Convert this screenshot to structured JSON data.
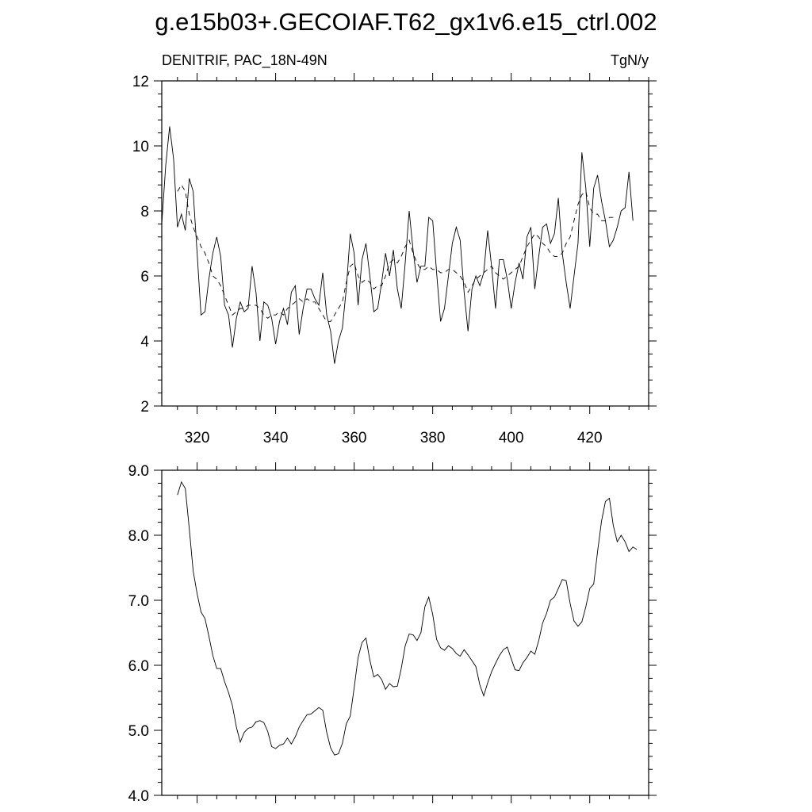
{
  "title": "g.e15b03+.GECOIAF.T62_gx1v6.e15_ctrl.002",
  "chart_data": [
    {
      "type": "line",
      "left_label": "DENITRIF, PAC_18N-49N",
      "right_label": "TgN/y",
      "xlim": [
        311,
        435
      ],
      "ylim": [
        2,
        12
      ],
      "x_ticks": [
        320,
        340,
        360,
        380,
        400,
        420
      ],
      "y_ticks": [
        2,
        4,
        6,
        8,
        10,
        12
      ],
      "y_tick_labels": [
        "2",
        "4",
        "6",
        "8",
        "10",
        "12"
      ],
      "x_start": 311,
      "series": [
        {
          "style": "solid",
          "values": [
            7.6,
            9.4,
            10.6,
            9.6,
            7.5,
            7.9,
            7.4,
            9.0,
            8.6,
            6.7,
            4.8,
            4.9,
            5.9,
            6.7,
            7.2,
            6.6,
            5.1,
            4.8,
            3.8,
            4.7,
            5.2,
            4.9,
            5.0,
            6.3,
            5.5,
            4.0,
            5.2,
            5.1,
            4.7,
            3.9,
            4.6,
            5.0,
            4.5,
            5.5,
            5.7,
            4.2,
            5.0,
            5.6,
            5.6,
            5.3,
            5.1,
            6.1,
            4.8,
            4.3,
            3.3,
            4.0,
            4.4,
            5.6,
            7.3,
            6.7,
            5.1,
            6.5,
            7.0,
            6.0,
            4.9,
            5.0,
            5.8,
            6.7,
            6.0,
            6.8,
            5.6,
            5.0,
            6.4,
            8.0,
            6.8,
            5.8,
            6.3,
            6.3,
            7.8,
            7.7,
            6.1,
            4.6,
            5.0,
            6.0,
            7.0,
            7.5,
            7.1,
            5.5,
            4.3,
            5.6,
            6.0,
            5.7,
            6.1,
            7.4,
            6.3,
            5.0,
            6.5,
            6.5,
            5.9,
            5.0,
            5.8,
            6.4,
            5.9,
            7.2,
            7.5,
            5.6,
            6.6,
            7.5,
            7.6,
            7.0,
            7.3,
            8.4,
            6.7,
            5.8,
            5.0,
            6.0,
            7.0,
            9.8,
            8.7,
            6.9,
            8.7,
            9.1,
            8.3,
            7.7,
            6.9,
            7.1,
            7.5,
            8.0,
            8.1,
            9.2,
            7.7
          ]
        },
        {
          "style": "dashed",
          "values": [
            null,
            null,
            null,
            null,
            8.6,
            8.8,
            8.6,
            7.9,
            7.5,
            7.2,
            6.9,
            6.7,
            6.4,
            6.0,
            5.9,
            5.7,
            5.4,
            5.1,
            4.8,
            4.9,
            5.0,
            5.0,
            5.1,
            5.1,
            5.1,
            5.0,
            4.8,
            4.7,
            4.8,
            4.8,
            4.9,
            4.8,
            5.0,
            5.1,
            5.2,
            5.3,
            5.2,
            5.3,
            5.2,
            5.2,
            5.0,
            4.8,
            4.6,
            4.6,
            4.8,
            5.0,
            5.2,
            5.8,
            6.3,
            6.4,
            6.0,
            5.8,
            5.9,
            5.8,
            5.6,
            5.7,
            5.7,
            6.0,
            6.4,
            6.5,
            6.4,
            6.6,
            6.9,
            7.1,
            6.7,
            6.4,
            6.2,
            6.2,
            6.3,
            6.2,
            6.2,
            6.1,
            6.1,
            6.2,
            6.2,
            6.1,
            6.0,
            5.8,
            5.5,
            5.7,
            5.9,
            6.0,
            6.1,
            6.2,
            6.3,
            6.1,
            6.0,
            5.9,
            6.0,
            6.1,
            6.2,
            6.3,
            6.6,
            6.9,
            7.1,
            7.3,
            7.2,
            7.0,
            6.9,
            6.7,
            6.6,
            6.6,
            6.7,
            7.0,
            7.2,
            7.7,
            8.2,
            8.5,
            8.6,
            8.1,
            7.9,
            7.9,
            7.7,
            7.7,
            7.8,
            7.8,
            null,
            null,
            null,
            null,
            null
          ]
        }
      ]
    },
    {
      "type": "line",
      "xlim": [
        311,
        435
      ],
      "ylim": [
        4.0,
        9.0
      ],
      "x_ticks": [
        320,
        340,
        360,
        380,
        400,
        420
      ],
      "y_ticks": [
        4.0,
        5.0,
        6.0,
        7.0,
        8.0,
        9.0
      ],
      "y_tick_labels": [
        "4.0",
        "5.0",
        "6.0",
        "7.0",
        "8.0",
        "9.0"
      ],
      "x_start": 315,
      "series": [
        {
          "style": "solid",
          "values": [
            8.62,
            8.82,
            8.72,
            8.1,
            7.45,
            7.1,
            6.82,
            6.72,
            6.45,
            6.15,
            5.95,
            5.95,
            5.75,
            5.58,
            5.38,
            5.05,
            4.82,
            4.97,
            5.03,
            5.05,
            5.13,
            5.15,
            5.12,
            4.98,
            4.75,
            4.72,
            4.77,
            4.79,
            4.88,
            4.79,
            4.9,
            5.05,
            5.15,
            5.24,
            5.25,
            5.3,
            5.35,
            5.31,
            4.97,
            4.73,
            4.62,
            4.64,
            4.8,
            5.1,
            5.22,
            5.65,
            6.12,
            6.35,
            6.42,
            6.08,
            5.82,
            5.86,
            5.78,
            5.63,
            5.72,
            5.67,
            5.68,
            5.95,
            6.3,
            6.48,
            6.47,
            6.38,
            6.5,
            6.9,
            7.05,
            6.78,
            6.4,
            6.27,
            6.23,
            6.3,
            6.26,
            6.18,
            6.14,
            6.24,
            6.16,
            6.07,
            5.98,
            5.7,
            5.53,
            5.73,
            5.9,
            6.03,
            6.15,
            6.24,
            6.28,
            6.1,
            5.93,
            5.92,
            6.04,
            6.12,
            6.22,
            6.17,
            6.38,
            6.65,
            6.8,
            7.0,
            7.05,
            7.18,
            7.32,
            7.3,
            6.95,
            6.68,
            6.6,
            6.67,
            6.9,
            7.18,
            7.25,
            7.75,
            8.22,
            8.52,
            8.57,
            8.15,
            7.9,
            8.0,
            7.9,
            7.75,
            7.82,
            7.78
          ]
        }
      ]
    }
  ]
}
